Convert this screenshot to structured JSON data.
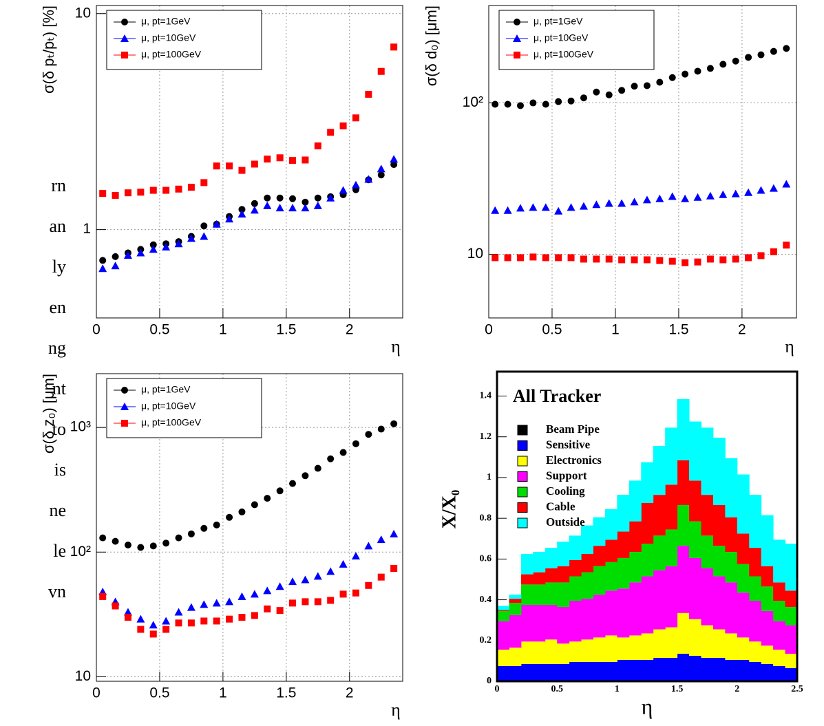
{
  "page_text": [
    "rn",
    "an",
    "ly",
    "en",
    "ng",
    "nt",
    "to",
    "is",
    "ne",
    "le",
    "vn"
  ],
  "chart_data": [
    {
      "type": "scatter",
      "y_label": "σ(δ pₜ/pₜ) [%]",
      "x_label": "η",
      "log": true,
      "grid": true,
      "legend": "upper left",
      "x": [
        0.05,
        0.15,
        0.25,
        0.35,
        0.45,
        0.55,
        0.65,
        0.75,
        0.85,
        0.95,
        1.05,
        1.15,
        1.25,
        1.35,
        1.45,
        1.55,
        1.65,
        1.75,
        1.85,
        1.95,
        2.05,
        2.15,
        2.25,
        2.35
      ],
      "xlim": [
        0,
        2.42
      ],
      "xticks": [
        0,
        0.5,
        1,
        1.5,
        2
      ],
      "ylim": [
        0.39,
        10.9
      ],
      "yticks": [
        1,
        10
      ],
      "series": [
        {
          "name": "μ, pt=1GeV",
          "color": "#000000",
          "marker": "circle",
          "values": [
            0.72,
            0.75,
            0.78,
            0.81,
            0.85,
            0.86,
            0.88,
            0.93,
            1.04,
            1.06,
            1.15,
            1.24,
            1.32,
            1.4,
            1.4,
            1.39,
            1.34,
            1.4,
            1.42,
            1.45,
            1.53,
            1.7,
            1.79,
            2.0
          ]
        },
        {
          "name": "μ, pt=10GeV",
          "color": "#0000ff",
          "marker": "triangle",
          "values": [
            0.66,
            0.68,
            0.76,
            0.78,
            0.81,
            0.83,
            0.86,
            0.91,
            0.93,
            1.06,
            1.12,
            1.18,
            1.23,
            1.29,
            1.26,
            1.26,
            1.26,
            1.29,
            1.4,
            1.52,
            1.61,
            1.71,
            1.91,
            2.12
          ]
        },
        {
          "name": "μ, pt=100GeV",
          "color": "#ff0000",
          "marker": "square",
          "values": [
            1.47,
            1.44,
            1.48,
            1.49,
            1.52,
            1.52,
            1.54,
            1.57,
            1.65,
            1.97,
            1.97,
            1.88,
            2.01,
            2.12,
            2.15,
            2.09,
            2.1,
            2.44,
            2.82,
            3.02,
            3.29,
            4.23,
            5.4,
            7.0
          ]
        }
      ]
    },
    {
      "type": "scatter",
      "y_label": "σ(δ d₀) [μm]",
      "x_label": "η",
      "log": true,
      "grid": true,
      "legend": "upper left",
      "x": [
        0.05,
        0.15,
        0.25,
        0.35,
        0.45,
        0.55,
        0.65,
        0.75,
        0.85,
        0.95,
        1.05,
        1.15,
        1.25,
        1.35,
        1.45,
        1.55,
        1.65,
        1.75,
        1.85,
        1.95,
        2.05,
        2.15,
        2.25,
        2.35
      ],
      "xlim": [
        0,
        2.43
      ],
      "xticks": [
        0,
        0.5,
        1,
        1.5,
        2
      ],
      "ylim": [
        3.8,
        440
      ],
      "yticks": [
        10,
        {
          "value": 100,
          "label": "10²"
        }
      ],
      "series": [
        {
          "name": "μ, pt=1GeV",
          "color": "#000000",
          "marker": "circle",
          "values": [
            98,
            98,
            96,
            100,
            98,
            102,
            103,
            108,
            118,
            113,
            121,
            129,
            130,
            137,
            147,
            155,
            162,
            169,
            180,
            189,
            200,
            208,
            219,
            229
          ]
        },
        {
          "name": "μ, pt=10GeV",
          "color": "#0000ff",
          "marker": "triangle",
          "values": [
            19.5,
            19.5,
            20.2,
            20.4,
            20.4,
            19.3,
            20.4,
            20.8,
            21.3,
            21.7,
            21.7,
            22.2,
            22.9,
            23.3,
            24.1,
            23.3,
            23.8,
            24.3,
            24.8,
            25.1,
            25.6,
            26.5,
            27.3,
            29.1
          ]
        },
        {
          "name": "μ, pt=100GeV",
          "color": "#ff0000",
          "marker": "square",
          "values": [
            9.5,
            9.5,
            9.5,
            9.6,
            9.5,
            9.5,
            9.5,
            9.3,
            9.3,
            9.3,
            9.2,
            9.2,
            9.2,
            9.1,
            9.0,
            8.8,
            8.9,
            9.3,
            9.2,
            9.3,
            9.5,
            9.8,
            10.4,
            11.5
          ]
        }
      ]
    },
    {
      "type": "scatter",
      "y_label": "σ(δ z₀) [μm]",
      "x_label": "η",
      "log": true,
      "grid": true,
      "legend": "upper left",
      "x": [
        0.05,
        0.15,
        0.25,
        0.35,
        0.45,
        0.55,
        0.65,
        0.75,
        0.85,
        0.95,
        1.05,
        1.15,
        1.25,
        1.35,
        1.45,
        1.55,
        1.65,
        1.75,
        1.85,
        1.95,
        2.05,
        2.15,
        2.25,
        2.35
      ],
      "xlim": [
        0,
        2.42
      ],
      "xticks": [
        0,
        0.5,
        1,
        1.5,
        2
      ],
      "ylim": [
        9.2,
        2700
      ],
      "yticks": [
        10,
        {
          "value": 100,
          "label": "10²"
        },
        {
          "value": 1000,
          "label": "10³"
        }
      ],
      "series": [
        {
          "name": "μ, pt=1GeV",
          "color": "#000000",
          "marker": "circle",
          "values": [
            130,
            122,
            114,
            109,
            112,
            118,
            130,
            140,
            155,
            165,
            190,
            210,
            240,
            270,
            310,
            355,
            410,
            470,
            560,
            630,
            740,
            880,
            970,
            1070
          ]
        },
        {
          "name": "μ, pt=10GeV",
          "color": "#0000ff",
          "marker": "triangle",
          "values": [
            48,
            40,
            33,
            29,
            26,
            28,
            33,
            36,
            38,
            39,
            40,
            44,
            46,
            49,
            53,
            58,
            60,
            64,
            70,
            80,
            93,
            112,
            126,
            140
          ]
        },
        {
          "name": "μ, pt=100GeV",
          "color": "#ff0000",
          "marker": "square",
          "values": [
            44,
            37,
            30,
            24,
            22,
            24,
            27,
            27,
            28,
            28,
            29,
            30,
            31,
            35,
            34,
            39,
            40,
            40,
            41,
            46,
            47,
            54,
            63,
            74
          ]
        }
      ]
    },
    {
      "type": "histogram",
      "title": "All Tracker",
      "y_label": "X/X₀",
      "x_label": "η",
      "stacked": true,
      "legend": "upper left",
      "bins": [
        0,
        0.1,
        0.2,
        0.3,
        0.4,
        0.5,
        0.6,
        0.7,
        0.8,
        0.9,
        1.0,
        1.1,
        1.2,
        1.3,
        1.4,
        1.5,
        1.6,
        1.7,
        1.8,
        1.9,
        2.0,
        2.1,
        2.2,
        2.3,
        2.4,
        2.5
      ],
      "xlim": [
        0,
        2.5
      ],
      "xticks": [
        0,
        0.5,
        1,
        1.5,
        2,
        2.5
      ],
      "ylim": [
        0,
        1.52
      ],
      "yticks": [
        0,
        0.2,
        0.4,
        0.6,
        0.8,
        1,
        1.2,
        1.4
      ],
      "series": [
        {
          "name": "Beam Pipe",
          "color": "#000000",
          "values": [
            0.005,
            0.005,
            0.005,
            0.005,
            0.005,
            0.005,
            0.005,
            0.005,
            0.005,
            0.005,
            0.005,
            0.005,
            0.005,
            0.005,
            0.005,
            0.005,
            0.005,
            0.005,
            0.005,
            0.005,
            0.005,
            0.005,
            0.005,
            0.005,
            0.005
          ]
        },
        {
          "name": "Sensitive",
          "color": "#0000ff",
          "values": [
            0.07,
            0.07,
            0.08,
            0.08,
            0.08,
            0.08,
            0.09,
            0.09,
            0.09,
            0.09,
            0.1,
            0.1,
            0.1,
            0.11,
            0.11,
            0.13,
            0.12,
            0.11,
            0.11,
            0.1,
            0.1,
            0.09,
            0.08,
            0.07,
            0.06
          ]
        },
        {
          "name": "Electronics",
          "color": "#ffff00",
          "values": [
            0.08,
            0.09,
            0.11,
            0.11,
            0.12,
            0.1,
            0.1,
            0.11,
            0.12,
            0.13,
            0.11,
            0.12,
            0.13,
            0.14,
            0.15,
            0.2,
            0.18,
            0.16,
            0.14,
            0.13,
            0.11,
            0.1,
            0.09,
            0.08,
            0.07
          ]
        },
        {
          "name": "Support",
          "color": "#ff00ff",
          "values": [
            0.14,
            0.16,
            0.18,
            0.18,
            0.17,
            0.18,
            0.2,
            0.2,
            0.21,
            0.22,
            0.24,
            0.26,
            0.28,
            0.29,
            0.3,
            0.33,
            0.3,
            0.28,
            0.26,
            0.25,
            0.22,
            0.2,
            0.17,
            0.14,
            0.14
          ]
        },
        {
          "name": "Cooling",
          "color": "#00dd00",
          "values": [
            0.05,
            0.06,
            0.1,
            0.1,
            0.11,
            0.12,
            0.12,
            0.13,
            0.14,
            0.14,
            0.15,
            0.15,
            0.16,
            0.17,
            0.18,
            0.2,
            0.18,
            0.16,
            0.15,
            0.15,
            0.14,
            0.12,
            0.12,
            0.1,
            0.09
          ]
        },
        {
          "name": "Cable",
          "color": "#ff0000",
          "values": [
            0.005,
            0.02,
            0.05,
            0.06,
            0.07,
            0.08,
            0.08,
            0.09,
            0.1,
            0.11,
            0.13,
            0.15,
            0.2,
            0.2,
            0.22,
            0.22,
            0.2,
            0.2,
            0.2,
            0.17,
            0.15,
            0.14,
            0.1,
            0.09,
            0.08
          ]
        },
        {
          "name": "Outside",
          "color": "#00ffff",
          "values": [
            0.02,
            0.02,
            0.1,
            0.1,
            0.1,
            0.12,
            0.12,
            0.14,
            0.14,
            0.15,
            0.18,
            0.2,
            0.2,
            0.24,
            0.28,
            0.3,
            0.29,
            0.33,
            0.33,
            0.29,
            0.29,
            0.26,
            0.25,
            0.21,
            0.23
          ]
        }
      ]
    }
  ]
}
